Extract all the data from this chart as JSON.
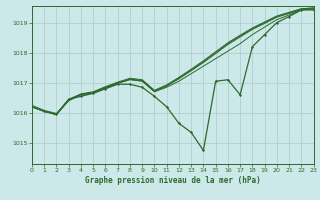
{
  "title": "Graphe pression niveau de la mer (hPa)",
  "bg_color": "#cce8e8",
  "grid_color": "#aacccc",
  "line_color": "#2d6a2d",
  "xlim": [
    0,
    23
  ],
  "ylim": [
    1014.3,
    1019.55
  ],
  "yticks": [
    1015,
    1016,
    1017,
    1018,
    1019
  ],
  "xticks": [
    0,
    1,
    2,
    3,
    4,
    5,
    6,
    7,
    8,
    9,
    10,
    11,
    12,
    13,
    14,
    15,
    16,
    17,
    18,
    19,
    20,
    21,
    22,
    23
  ],
  "series": [
    [
      1016.2,
      1016.05,
      1015.95,
      1016.45,
      1016.55,
      1016.65,
      1016.8,
      1016.95,
      1016.95,
      1016.85,
      1016.55,
      1016.2,
      1015.65,
      1015.35,
      1014.75,
      1017.05,
      1017.1,
      1016.6,
      1018.2,
      1018.6,
      1019.0,
      1019.2,
      1019.42,
      1019.42
    ],
    [
      1016.2,
      1016.05,
      1015.95,
      1016.4,
      1016.6,
      1016.65,
      1016.82,
      1016.98,
      1017.1,
      1017.05,
      1016.7,
      1016.85,
      1017.05,
      1017.3,
      1017.55,
      1017.8,
      1018.05,
      1018.3,
      1018.6,
      1018.85,
      1019.1,
      1019.25,
      1019.42,
      1019.45
    ],
    [
      1016.2,
      1016.05,
      1015.95,
      1016.42,
      1016.62,
      1016.68,
      1016.85,
      1017.0,
      1017.12,
      1017.08,
      1016.72,
      1016.9,
      1017.15,
      1017.42,
      1017.7,
      1018.0,
      1018.3,
      1018.55,
      1018.8,
      1019.0,
      1019.2,
      1019.32,
      1019.45,
      1019.48
    ],
    [
      1016.25,
      1016.08,
      1015.98,
      1016.45,
      1016.63,
      1016.7,
      1016.87,
      1017.02,
      1017.15,
      1017.1,
      1016.75,
      1016.93,
      1017.18,
      1017.45,
      1017.73,
      1018.03,
      1018.33,
      1018.58,
      1018.82,
      1019.02,
      1019.22,
      1019.34,
      1019.46,
      1019.49
    ],
    [
      1016.2,
      1016.05,
      1015.93,
      1016.44,
      1016.61,
      1016.67,
      1016.84,
      1016.99,
      1017.11,
      1017.06,
      1016.71,
      1016.89,
      1017.13,
      1017.4,
      1017.67,
      1017.97,
      1018.27,
      1018.52,
      1018.77,
      1018.97,
      1019.18,
      1019.3,
      1019.43,
      1019.46
    ]
  ]
}
